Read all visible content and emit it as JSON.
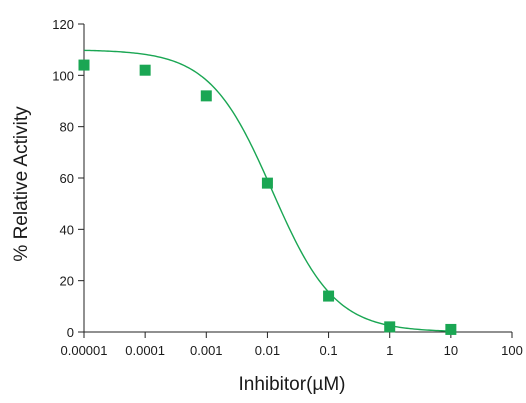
{
  "chart_data": {
    "type": "scatter",
    "xlabel": "Inhibitor(µM)",
    "ylabel": "% Relative Activity",
    "xscale": "log",
    "xlim": [
      1e-05,
      100
    ],
    "ylim": [
      0,
      120
    ],
    "x_ticks": [
      1e-05,
      0.0001,
      0.001,
      0.01,
      0.1,
      1,
      10,
      100
    ],
    "x_tick_labels": [
      "0.00001",
      "0.0001",
      "0.001",
      "0.01",
      "0.1",
      "1",
      "10",
      "100"
    ],
    "y_ticks": [
      0,
      20,
      40,
      60,
      80,
      100,
      120
    ],
    "y_tick_labels": [
      "0",
      "20",
      "40",
      "60",
      "80",
      "100",
      "120"
    ],
    "grid": false,
    "legend": "none",
    "series": [
      {
        "marker": "square",
        "color": "#1aa653",
        "x": [
          1e-05,
          0.0001,
          0.001,
          0.01,
          0.1,
          1,
          10
        ],
        "y": [
          104,
          102,
          92,
          58,
          14,
          2,
          1
        ]
      }
    ],
    "fit_curve": {
      "type": "sigmoid",
      "color": "#1aa653",
      "top": 110,
      "bottom": 0,
      "ic50": 0.012,
      "hill": 0.85,
      "x_range": [
        1e-05,
        10
      ]
    }
  }
}
